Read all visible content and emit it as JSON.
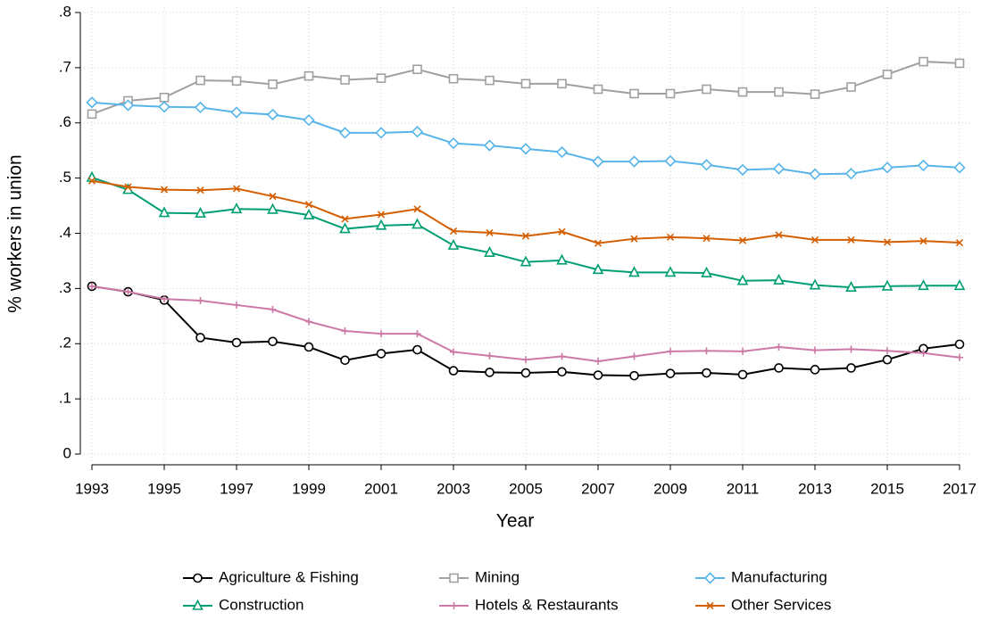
{
  "chart_data": {
    "type": "line",
    "xlabel": "Year",
    "ylabel": "% workers in union",
    "x": [
      1993,
      1994,
      1995,
      1996,
      1997,
      1998,
      1999,
      2000,
      2001,
      2002,
      2003,
      2004,
      2005,
      2006,
      2007,
      2008,
      2009,
      2010,
      2011,
      2012,
      2013,
      2014,
      2015,
      2016,
      2017
    ],
    "series": [
      {
        "name": "Agriculture & Fishing",
        "color": "#000000",
        "marker": "circle",
        "values": [
          0.304,
          0.294,
          0.279,
          0.211,
          0.202,
          0.204,
          0.194,
          0.17,
          0.182,
          0.189,
          0.151,
          0.148,
          0.147,
          0.149,
          0.143,
          0.142,
          0.146,
          0.147,
          0.144,
          0.156,
          0.153,
          0.156,
          0.171,
          0.191,
          0.199
        ]
      },
      {
        "name": "Mining",
        "color": "#a0a0a0",
        "marker": "square",
        "values": [
          0.616,
          0.64,
          0.646,
          0.677,
          0.676,
          0.67,
          0.685,
          0.678,
          0.681,
          0.697,
          0.68,
          0.677,
          0.671,
          0.671,
          0.661,
          0.653,
          0.653,
          0.661,
          0.656,
          0.656,
          0.652,
          0.665,
          0.688,
          0.711,
          0.708
        ]
      },
      {
        "name": "Manufacturing",
        "color": "#56b4e9",
        "marker": "diamond",
        "values": [
          0.637,
          0.632,
          0.629,
          0.628,
          0.619,
          0.615,
          0.605,
          0.582,
          0.582,
          0.584,
          0.563,
          0.559,
          0.553,
          0.547,
          0.53,
          0.53,
          0.531,
          0.524,
          0.515,
          0.517,
          0.507,
          0.508,
          0.519,
          0.523,
          0.519
        ]
      },
      {
        "name": "Construction",
        "color": "#009e73",
        "marker": "triangle",
        "values": [
          0.501,
          0.479,
          0.437,
          0.436,
          0.444,
          0.443,
          0.433,
          0.408,
          0.414,
          0.416,
          0.378,
          0.365,
          0.348,
          0.351,
          0.334,
          0.329,
          0.329,
          0.328,
          0.314,
          0.315,
          0.306,
          0.302,
          0.304,
          0.305,
          0.305
        ]
      },
      {
        "name": "Hotels & Restaurants",
        "color": "#cc79a7",
        "marker": "plus",
        "values": [
          0.304,
          0.294,
          0.281,
          0.278,
          0.27,
          0.262,
          0.24,
          0.223,
          0.218,
          0.218,
          0.185,
          0.178,
          0.171,
          0.177,
          0.168,
          0.177,
          0.186,
          0.187,
          0.186,
          0.194,
          0.188,
          0.19,
          0.187,
          0.183,
          0.175
        ]
      },
      {
        "name": "Other Services",
        "color": "#d55e00",
        "marker": "x",
        "values": [
          0.495,
          0.484,
          0.479,
          0.478,
          0.481,
          0.467,
          0.452,
          0.426,
          0.434,
          0.444,
          0.404,
          0.401,
          0.395,
          0.403,
          0.382,
          0.39,
          0.393,
          0.391,
          0.387,
          0.397,
          0.388,
          0.388,
          0.384,
          0.386,
          0.383
        ]
      }
    ],
    "xlim": [
      1993,
      2017
    ],
    "xticks": [
      1993,
      1995,
      1997,
      1999,
      2001,
      2003,
      2005,
      2007,
      2009,
      2011,
      2013,
      2015,
      2017
    ],
    "ylim": [
      0,
      0.8
    ],
    "yticks": [
      0,
      {
        "value": 0.1,
        "label": ".1"
      },
      {
        "value": 0.2,
        "label": ".2"
      },
      {
        "value": 0.3,
        "label": ".3"
      },
      {
        "value": 0.4,
        "label": ".4"
      },
      {
        "value": 0.5,
        "label": ".5"
      },
      {
        "value": 0.6,
        "label": ".6"
      },
      {
        "value": 0.7,
        "label": ".7"
      },
      {
        "value": 0.8,
        "label": ".8"
      }
    ],
    "grid": true,
    "legend": "bottom"
  }
}
